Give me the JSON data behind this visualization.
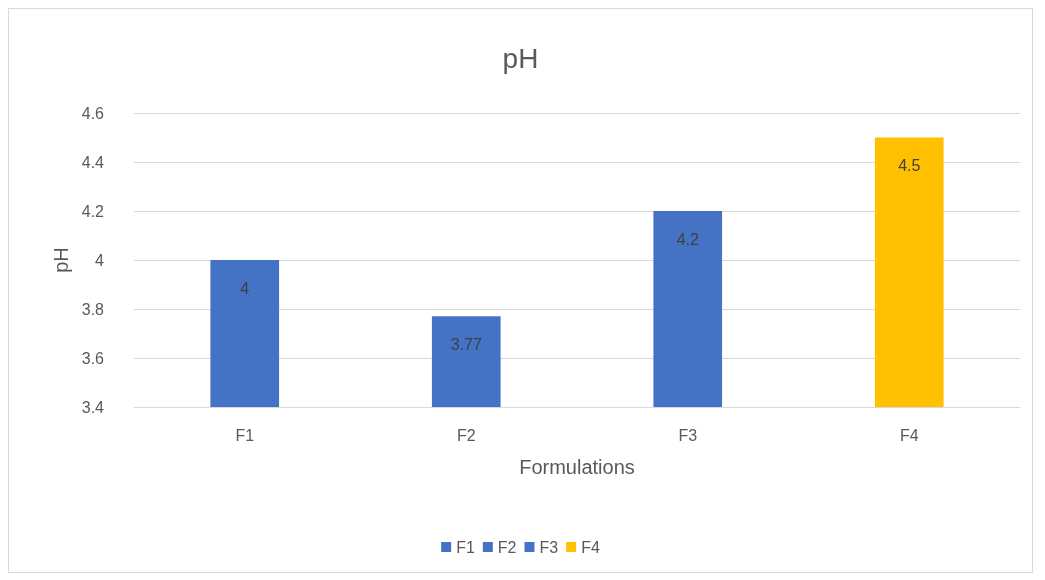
{
  "chart_data": {
    "type": "bar",
    "title": "pH",
    "xlabel": "Formulations",
    "ylabel": "pH",
    "categories": [
      "F1",
      "F2",
      "F3",
      "F4"
    ],
    "series": [
      {
        "name": "F1",
        "color": "#4472c4",
        "values": [
          4,
          null,
          null,
          null
        ]
      },
      {
        "name": "F2",
        "color": "#4472c4",
        "values": [
          null,
          3.77,
          null,
          null
        ]
      },
      {
        "name": "F3",
        "color": "#4472c4",
        "values": [
          null,
          null,
          4.2,
          null
        ]
      },
      {
        "name": "F4",
        "color": "#ffc000",
        "values": [
          null,
          null,
          null,
          4.5
        ]
      }
    ],
    "ylim": [
      3.4,
      4.6
    ],
    "yticks": [
      3.4,
      3.6,
      3.8,
      4,
      4.2,
      4.4,
      4.6
    ],
    "grid": "y",
    "legend": "bottom",
    "data_labels": true
  }
}
